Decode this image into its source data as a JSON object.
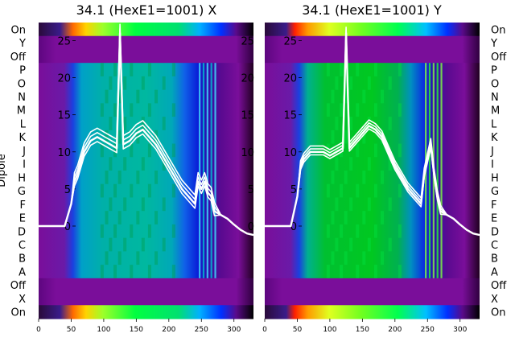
{
  "colors": {
    "purple": "#7a0e9a",
    "purple_dark": "#5e0680",
    "trace": "#ffffff"
  },
  "chart_data": [
    {
      "type": "heatmap",
      "title": "34.1 (HexE1=1001) X",
      "ylabel": "Dipole",
      "row_labels": [
        "On",
        "Y",
        "Off",
        "P",
        "O",
        "N",
        "M",
        "L",
        "K",
        "J",
        "I",
        "H",
        "G",
        "F",
        "E",
        "D",
        "C",
        "B",
        "A",
        "Off",
        "X",
        "On"
      ],
      "xticks": [
        0,
        50,
        100,
        150,
        200,
        250,
        300
      ],
      "xlim": [
        0,
        330
      ],
      "inner_yticks": [
        0,
        5,
        10,
        15,
        20,
        25
      ],
      "inner_ylim": [
        -0.5,
        27
      ],
      "trace_x": [
        0,
        40,
        50,
        55,
        60,
        70,
        80,
        90,
        100,
        110,
        120,
        125,
        130,
        140,
        150,
        160,
        170,
        180,
        190,
        200,
        210,
        220,
        230,
        240,
        245,
        250,
        255,
        260,
        265,
        270,
        280,
        290,
        300,
        310,
        320,
        330
      ],
      "trace_y": [
        0,
        0,
        3,
        6,
        7,
        10,
        11.5,
        12,
        11.5,
        11,
        10.5,
        26,
        11,
        11.5,
        12.5,
        13,
        12,
        11,
        9.5,
        8,
        6.5,
        5,
        4,
        3,
        6,
        5,
        6,
        4.5,
        4,
        2,
        1.5,
        1,
        0.2,
        -0.5,
        -1,
        -1.2
      ]
    },
    {
      "type": "heatmap",
      "title": "34.1 (HexE1=1001) Y",
      "row_labels": [
        "On",
        "Y",
        "Off",
        "P",
        "O",
        "N",
        "M",
        "L",
        "K",
        "J",
        "I",
        "H",
        "G",
        "F",
        "E",
        "D",
        "C",
        "B",
        "A",
        "Off",
        "X",
        "On"
      ],
      "xticks": [
        0,
        50,
        100,
        150,
        200,
        250,
        300
      ],
      "xlim": [
        0,
        330
      ],
      "inner_yticks": [
        0,
        5,
        10,
        15,
        20,
        25
      ],
      "inner_ylim": [
        -0.5,
        27
      ],
      "trace_x": [
        0,
        40,
        50,
        55,
        60,
        70,
        80,
        90,
        100,
        110,
        120,
        125,
        130,
        140,
        150,
        160,
        170,
        180,
        190,
        200,
        210,
        220,
        230,
        240,
        245,
        250,
        255,
        260,
        265,
        270,
        280,
        290,
        300,
        310,
        320,
        330
      ],
      "trace_y": [
        0,
        0,
        4,
        8,
        9,
        10,
        10,
        10,
        9.5,
        10,
        10.5,
        26,
        10.5,
        11.5,
        12.5,
        13.5,
        13,
        12,
        10,
        8,
        6.5,
        5,
        4,
        3,
        7,
        9,
        11,
        7,
        4,
        2,
        1.5,
        1,
        0.2,
        -0.5,
        -1,
        -1.2
      ]
    }
  ]
}
